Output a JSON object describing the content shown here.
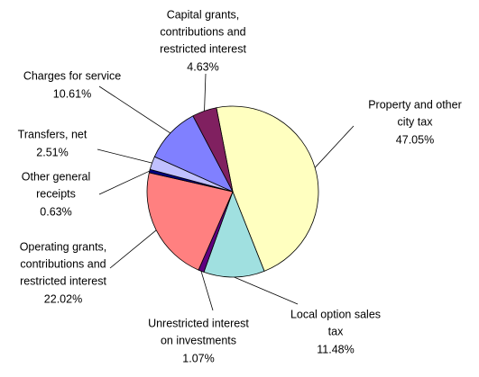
{
  "chart_data": {
    "type": "pie",
    "categories": [
      [
        "Property and other",
        "city tax"
      ],
      [
        "Local option sales",
        "tax"
      ],
      [
        "Unrestricted interest",
        "on investments"
      ],
      [
        "Operating grants,",
        "contributions and",
        "restricted interest"
      ],
      [
        "Other general",
        "receipts"
      ],
      [
        "Transfers, net"
      ],
      [
        "Charges for service"
      ],
      [
        "Capital grants,",
        "contributions and",
        "restricted interest"
      ]
    ],
    "values": [
      47.05,
      11.48,
      1.07,
      22.02,
      0.63,
      2.51,
      10.61,
      4.63
    ],
    "value_labels": [
      "47.05%",
      "11.48%",
      "1.07%",
      "22.02%",
      "0.63%",
      "2.51%",
      "10.61%",
      "4.63%"
    ],
    "colors": [
      "#ffffc0",
      "#a0e0e0",
      "#600080",
      "#ff8080",
      "#000080",
      "#c0c0ff",
      "#8080ff",
      "#802060"
    ]
  }
}
